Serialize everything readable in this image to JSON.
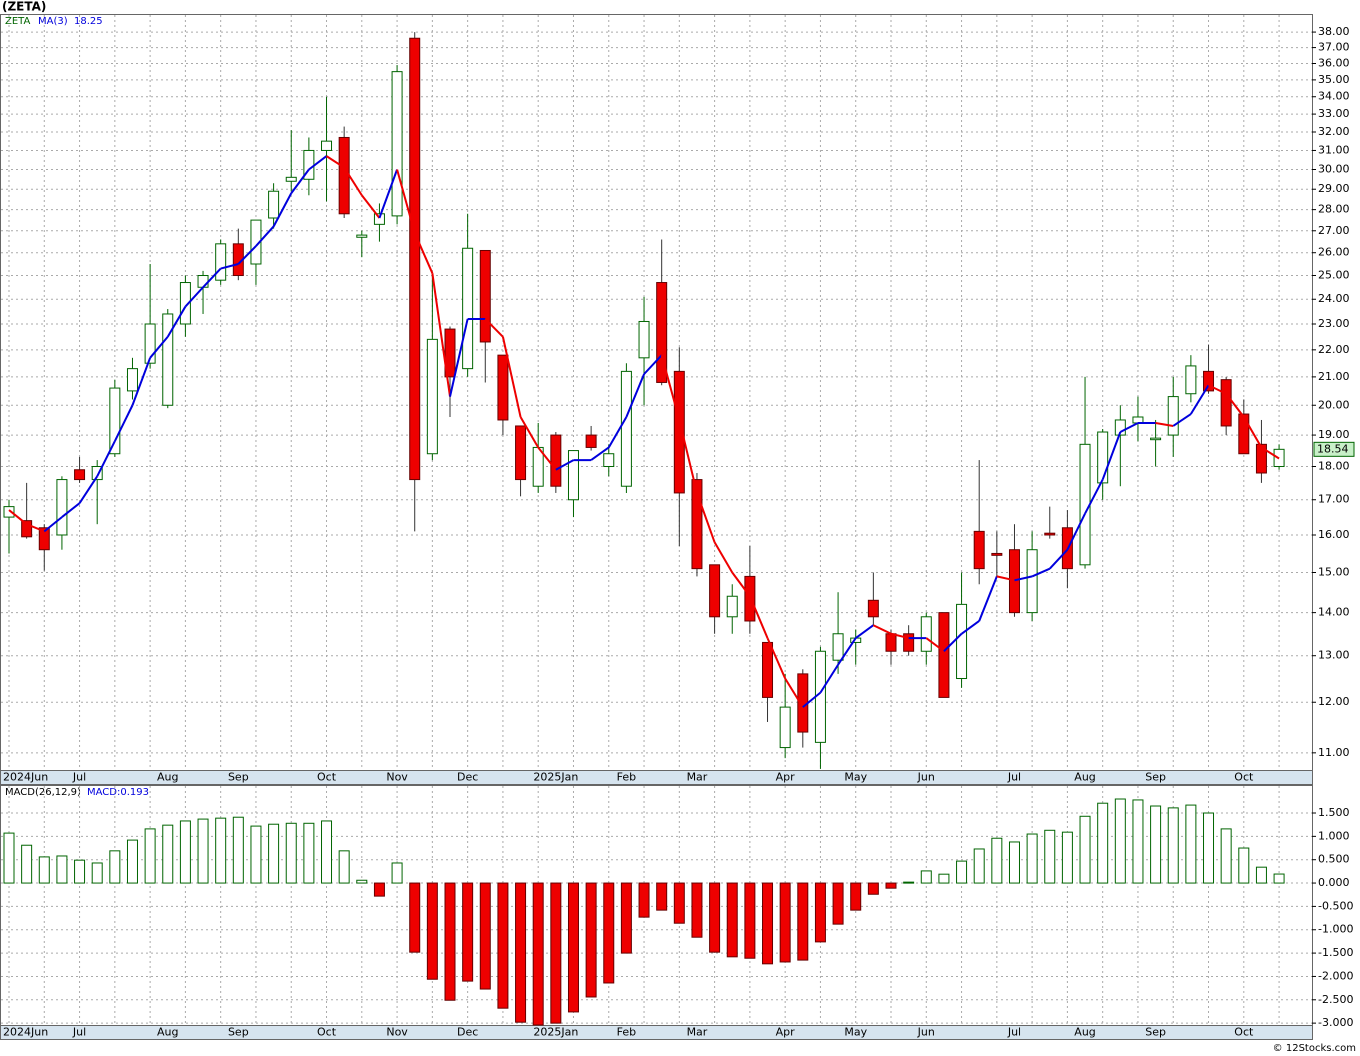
{
  "chart_data": [
    {
      "type": "candlestick",
      "title": "(ZETA)",
      "ticker": "ZETA",
      "log_scale": true,
      "grid": true,
      "categories": [
        "2024Jun",
        null,
        null,
        null,
        "Jul",
        null,
        null,
        null,
        null,
        "Aug",
        null,
        null,
        null,
        "Sep",
        null,
        null,
        null,
        null,
        "Oct",
        null,
        null,
        null,
        "Nov",
        null,
        null,
        null,
        "Dec",
        null,
        null,
        null,
        null,
        "2025Jan",
        null,
        null,
        null,
        "Feb",
        null,
        null,
        null,
        "Mar",
        null,
        null,
        null,
        null,
        "Apr",
        null,
        null,
        null,
        "May",
        null,
        null,
        null,
        "Jun",
        null,
        null,
        null,
        null,
        "Jul",
        null,
        null,
        null,
        "Aug",
        null,
        null,
        null,
        "Sep",
        null,
        null,
        null,
        null,
        "Oct",
        null,
        null
      ],
      "open": [
        16.5,
        16.4,
        16.2,
        16.0,
        17.9,
        17.6,
        18.4,
        20.5,
        21.5,
        20.0,
        23.0,
        24.5,
        24.8,
        26.4,
        25.5,
        27.6,
        29.4,
        29.5,
        31.0,
        31.7,
        26.7,
        27.3,
        27.7,
        37.6,
        18.4,
        22.8,
        21.3,
        26.1,
        21.8,
        19.3,
        17.4,
        19.0,
        17.0,
        19.0,
        18.0,
        17.4,
        21.7,
        24.7,
        21.2,
        17.6,
        15.2,
        13.9,
        14.9,
        13.3,
        11.1,
        12.6,
        11.2,
        12.9,
        13.3,
        14.3,
        13.5,
        13.5,
        13.1,
        14.0,
        12.5,
        16.1,
        15.5,
        15.6,
        14.0,
        16.05,
        16.2,
        15.2,
        17.5,
        19.0,
        19.4,
        18.85,
        19.0,
        20.4,
        21.2,
        20.9,
        19.7,
        18.7,
        18.0
      ],
      "high": [
        17.0,
        17.5,
        16.3,
        17.7,
        18.3,
        18.2,
        20.9,
        21.7,
        25.5,
        23.6,
        25.0,
        25.2,
        26.6,
        27.1,
        27.5,
        29.3,
        32.1,
        31.7,
        34.0,
        32.3,
        27.0,
        28.3,
        35.9,
        38.0,
        25.0,
        22.9,
        27.8,
        26.1,
        21.8,
        19.3,
        19.4,
        19.1,
        18.5,
        19.3,
        18.7,
        21.5,
        24.1,
        26.6,
        22.1,
        17.8,
        15.2,
        14.7,
        15.7,
        13.3,
        12.6,
        12.7,
        13.2,
        14.5,
        13.6,
        15.0,
        13.6,
        13.7,
        14.0,
        14.0,
        15.0,
        18.2,
        16.1,
        16.3,
        16.1,
        16.8,
        16.7,
        21.0,
        19.2,
        20.0,
        20.3,
        19.5,
        21.0,
        21.8,
        22.2,
        21.0,
        20.2,
        19.5,
        18.7
      ],
      "low": [
        15.5,
        15.9,
        15.05,
        15.6,
        17.5,
        16.3,
        18.3,
        20.2,
        21.3,
        19.9,
        22.5,
        23.4,
        24.6,
        24.8,
        24.6,
        27.1,
        28.9,
        28.7,
        28.4,
        27.6,
        25.8,
        26.5,
        27.3,
        16.1,
        18.2,
        19.6,
        21.0,
        20.8,
        19.0,
        17.1,
        17.2,
        17.2,
        16.5,
        18.5,
        17.7,
        17.2,
        20.0,
        20.7,
        15.7,
        14.9,
        13.5,
        13.5,
        13.5,
        11.6,
        10.9,
        11.1,
        10.7,
        12.6,
        12.8,
        13.7,
        12.8,
        13.0,
        12.8,
        12.1,
        12.3,
        14.7,
        14.9,
        13.9,
        13.8,
        15.9,
        14.6,
        15.1,
        17.0,
        17.4,
        18.8,
        18.0,
        18.3,
        20.1,
        20.4,
        19.0,
        18.4,
        17.5,
        17.9
      ],
      "close": [
        16.8,
        15.95,
        15.6,
        17.6,
        17.6,
        18.0,
        20.6,
        21.3,
        23.0,
        23.4,
        24.7,
        25.0,
        26.4,
        25.0,
        27.5,
        28.9,
        29.6,
        31.0,
        31.5,
        27.8,
        26.8,
        27.8,
        35.5,
        17.6,
        22.4,
        21.0,
        26.2,
        22.3,
        19.5,
        17.6,
        18.6,
        17.4,
        18.5,
        18.6,
        18.4,
        21.2,
        23.1,
        20.8,
        17.2,
        15.1,
        13.9,
        14.4,
        13.8,
        12.1,
        11.9,
        11.4,
        13.1,
        13.5,
        13.4,
        13.9,
        13.1,
        13.1,
        13.9,
        12.1,
        14.2,
        15.1,
        15.45,
        14.0,
        15.6,
        16.0,
        15.1,
        18.7,
        19.1,
        19.5,
        19.6,
        18.9,
        20.3,
        21.4,
        20.5,
        19.3,
        18.4,
        17.8,
        18.54
      ],
      "up_color": "#006400",
      "down_color": "#ee0000",
      "ma": {
        "name": "MA(3)",
        "up_color": "#0000dd",
        "down_color": "#ee0000",
        "values": [
          16.7,
          16.3,
          16.1,
          16.5,
          16.9,
          17.7,
          18.8,
          20.0,
          21.7,
          22.5,
          23.7,
          24.5,
          25.3,
          25.5,
          26.3,
          27.2,
          28.8,
          30.0,
          30.7,
          30.1,
          28.7,
          27.6,
          30.0,
          26.9,
          25.1,
          20.3,
          23.2,
          23.2,
          22.5,
          19.6,
          18.6,
          17.9,
          18.2,
          18.2,
          18.6,
          19.6,
          21.1,
          21.8,
          19.5,
          17.2,
          15.8,
          15.0,
          14.4,
          13.4,
          12.5,
          11.9,
          12.2,
          12.8,
          13.4,
          13.7,
          13.5,
          13.4,
          13.4,
          13.1,
          13.5,
          13.8,
          14.9,
          14.8,
          14.9,
          15.1,
          15.6,
          16.6,
          17.6,
          19.1,
          19.4,
          19.4,
          19.3,
          19.7,
          20.7,
          20.4,
          19.6,
          18.6,
          18.25
        ]
      },
      "ylim": [
        10.68,
        39.2
      ],
      "yticks": [
        {
          "value": 11,
          "label": "11.00"
        },
        {
          "value": 12,
          "label": "12.00"
        },
        {
          "value": 13,
          "label": "13.00"
        },
        {
          "value": 14,
          "label": "14.00"
        },
        {
          "value": 15,
          "label": "15.00"
        },
        {
          "value": 16,
          "label": "16.00"
        },
        {
          "value": 17,
          "label": "17.00"
        },
        {
          "value": 18,
          "label": "18.00"
        },
        {
          "value": 19,
          "label": "19.00"
        },
        {
          "value": 20,
          "label": "20.00"
        },
        {
          "value": 21,
          "label": "21.00"
        },
        {
          "value": 22,
          "label": "22.00"
        },
        {
          "value": 23,
          "label": "23.00"
        },
        {
          "value": 24,
          "label": "24.00"
        },
        {
          "value": 25,
          "label": "25.00"
        },
        {
          "value": 26,
          "label": "26.00"
        },
        {
          "value": 27,
          "label": "27.00"
        },
        {
          "value": 28,
          "label": "28.00"
        },
        {
          "value": 29,
          "label": "29.00"
        },
        {
          "value": 30,
          "label": "30.00"
        },
        {
          "value": 31,
          "label": "31.00"
        },
        {
          "value": 32,
          "label": "32.00"
        },
        {
          "value": 33,
          "label": "33.00"
        },
        {
          "value": 34,
          "label": "34.00"
        },
        {
          "value": 35,
          "label": "35.00"
        },
        {
          "value": 36,
          "label": "36.00"
        },
        {
          "value": 37,
          "label": "37.00"
        },
        {
          "value": 38,
          "label": "38.00"
        }
      ]
    },
    {
      "type": "bar",
      "title": "MACD(26,12,9)",
      "legend": "MACD:0.193",
      "grid": true,
      "values": [
        1.07,
        0.81,
        0.56,
        0.58,
        0.49,
        0.43,
        0.69,
        0.92,
        1.16,
        1.24,
        1.33,
        1.37,
        1.39,
        1.41,
        1.22,
        1.26,
        1.28,
        1.28,
        1.33,
        0.69,
        0.06,
        -0.28,
        0.43,
        -1.48,
        -2.06,
        -2.51,
        -2.1,
        -2.27,
        -2.68,
        -2.98,
        -3.04,
        -3.0,
        -2.76,
        -2.44,
        -2.14,
        -1.5,
        -0.73,
        -0.58,
        -0.86,
        -1.16,
        -1.48,
        -1.58,
        -1.61,
        -1.73,
        -1.69,
        -1.65,
        -1.26,
        -0.88,
        -0.58,
        -0.24,
        -0.11,
        0.02,
        0.26,
        0.19,
        0.47,
        0.73,
        0.96,
        0.88,
        1.05,
        1.13,
        1.09,
        1.43,
        1.71,
        1.8,
        1.78,
        1.65,
        1.61,
        1.67,
        1.5,
        1.16,
        0.75,
        0.34,
        0.193
      ],
      "pos_color": "#006400",
      "neg_color": "#ee0000",
      "ylim": [
        -3.04,
        2.1
      ],
      "yticks": [
        {
          "value": 1.5,
          "label": "1.500"
        },
        {
          "value": 1,
          "label": "1.000"
        },
        {
          "value": 0.5,
          "label": "0.500"
        },
        {
          "value": 0,
          "label": "0.000"
        },
        {
          "value": -0.5,
          "label": "-0.500"
        },
        {
          "value": -1,
          "label": "-1.000"
        },
        {
          "value": -1.5,
          "label": "-1.500"
        },
        {
          "value": -2,
          "label": "-2.000"
        },
        {
          "value": -2.5,
          "label": "-2.500"
        },
        {
          "value": -3,
          "label": "-3.000"
        }
      ]
    }
  ],
  "footer": "© 12Stocks.com"
}
